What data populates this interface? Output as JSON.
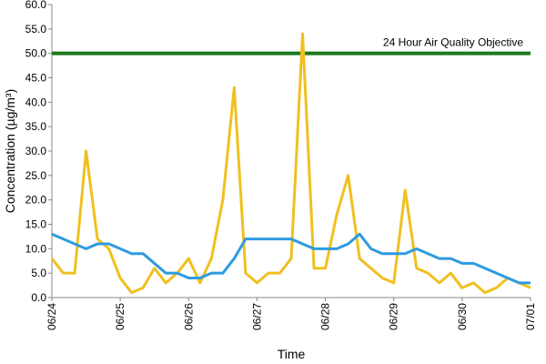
{
  "chart_data": {
    "type": "line",
    "ylabel": "Concentration (µg/m³)",
    "xlabel": "Time",
    "categories": [
      "06/24",
      null,
      null,
      null,
      null,
      null,
      "06/25",
      null,
      null,
      null,
      null,
      null,
      "06/26",
      null,
      null,
      null,
      null,
      null,
      "06/27",
      null,
      null,
      null,
      null,
      null,
      "06/28",
      null,
      null,
      null,
      null,
      null,
      "06/29",
      null,
      null,
      null,
      null,
      null,
      "06/30",
      null,
      null,
      null,
      null,
      null,
      "07/01"
    ],
    "series": [
      {
        "color": "#f0c020",
        "values": [
          8,
          5,
          5,
          30,
          12,
          10,
          4,
          1,
          2,
          6,
          3,
          5,
          8,
          3,
          8,
          20,
          43,
          5,
          3,
          5,
          5,
          8,
          54,
          6,
          6,
          17,
          25,
          8,
          6,
          4,
          3,
          22,
          6,
          5,
          3,
          5,
          2,
          3,
          1,
          2,
          4,
          3,
          2
        ]
      },
      {
        "color": "#2e9be0",
        "values": [
          13,
          12,
          11,
          10,
          11,
          11,
          10,
          9,
          9,
          7,
          5,
          5,
          4,
          4,
          5,
          5,
          8,
          12,
          12,
          12,
          12,
          12,
          11,
          10,
          10,
          10,
          11,
          13,
          10,
          9,
          9,
          9,
          10,
          9,
          8,
          8,
          7,
          7,
          6,
          5,
          4,
          3,
          3
        ]
      }
    ],
    "annotations": [
      {
        "text": "24 Hour Air Quality Objective",
        "y": 50,
        "color": "#1a7a1a"
      }
    ],
    "ylim": [
      0,
      60
    ],
    "yticks": [
      {
        "value": 0,
        "label": "0.0"
      },
      {
        "value": 5,
        "label": "5.0"
      },
      {
        "value": 10,
        "label": "10.0"
      },
      {
        "value": 15,
        "label": "15.0"
      },
      {
        "value": 20,
        "label": "20.0"
      },
      {
        "value": 25,
        "label": "25.0"
      },
      {
        "value": 30,
        "label": "30.0"
      },
      {
        "value": 35,
        "label": "35.0"
      },
      {
        "value": 40,
        "label": "40.0"
      },
      {
        "value": 45,
        "label": "45.0"
      },
      {
        "value": 50,
        "label": "50.0"
      },
      {
        "value": 55,
        "label": "55.0"
      },
      {
        "value": 60,
        "label": "60.0"
      }
    ]
  }
}
